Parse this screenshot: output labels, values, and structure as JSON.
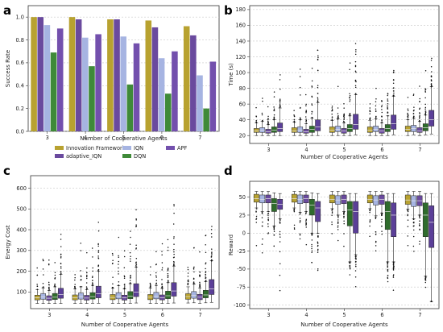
{
  "colors": {
    "Innovation Framework": "#b8a230",
    "adaptive_IQN": "#6a4a9e",
    "IQN": "#a6b4e2",
    "DQN": "#3f8a38",
    "APF": "#7350ad",
    "DQN_box": "#2f6c2c",
    "APF_box": "#5b3f98"
  },
  "chart_data": [
    {
      "panel": "a",
      "type": "bar",
      "xlabel": "Number of Cooperative Agents",
      "ylabel": "Success Rate",
      "ylim": [
        0,
        1.1
      ],
      "yticks": [
        "0.0",
        "0.2",
        "0.4",
        "0.6",
        "0.8",
        "1.0"
      ],
      "grid": true,
      "legend": "below",
      "categories": [
        "3",
        "4",
        "5",
        "6",
        "7"
      ],
      "series": [
        {
          "name": "Innovation Framework",
          "values": [
            1.0,
            1.0,
            0.98,
            0.97,
            0.92
          ]
        },
        {
          "name": "adaptive_IQN",
          "values": [
            1.0,
            0.98,
            0.98,
            0.91,
            0.84
          ]
        },
        {
          "name": "IQN",
          "values": [
            0.93,
            0.82,
            0.83,
            0.64,
            0.49
          ]
        },
        {
          "name": "DQN",
          "values": [
            0.69,
            0.57,
            0.41,
            0.33,
            0.2
          ]
        },
        {
          "name": "APF",
          "values": [
            0.9,
            0.85,
            0.77,
            0.7,
            0.61
          ]
        }
      ]
    },
    {
      "panel": "b",
      "type": "box",
      "xlabel": "Number of Cooperative Agents",
      "ylabel": "Time (s)",
      "ylim": [
        10,
        185
      ],
      "yticks": [
        "20",
        "40",
        "60",
        "80",
        "100",
        "120",
        "140",
        "160",
        "180"
      ],
      "categories": [
        "3",
        "4",
        "5",
        "6",
        "7"
      ],
      "series": [
        {
          "name": "Innovation Framework",
          "boxes": [
            [
              20,
              24,
              26,
              29,
              36
            ],
            [
              20,
              24,
              26,
              30,
              37
            ],
            [
              20,
              24,
              27,
              31,
              39
            ],
            [
              20,
              24,
              27,
              31,
              39
            ],
            [
              20,
              25,
              28,
              32,
              40
            ]
          ]
        },
        {
          "name": "IQN",
          "boxes": [
            [
              20,
              24,
              27,
              30,
              38
            ],
            [
              20,
              24,
              27,
              31,
              40
            ],
            [
              20,
              25,
              28,
              32,
              41
            ],
            [
              20,
              25,
              28,
              32,
              41
            ],
            [
              21,
              25,
              29,
              33,
              42
            ]
          ]
        },
        {
          "name": "adaptive_IQN",
          "boxes": [
            [
              20,
              23,
              25,
              28,
              34
            ],
            [
              20,
              23,
              25,
              28,
              35
            ],
            [
              20,
              23,
              26,
              29,
              36
            ],
            [
              20,
              23,
              26,
              29,
              36
            ],
            [
              20,
              24,
              26,
              30,
              38
            ]
          ]
        },
        {
          "name": "DQN",
          "boxes": [
            [
              20,
              24,
              27,
              31,
              40
            ],
            [
              20,
              24,
              28,
              32,
              42
            ],
            [
              20,
              25,
              29,
              34,
              45
            ],
            [
              20,
              25,
              29,
              34,
              45
            ],
            [
              21,
              26,
              30,
              35,
              46
            ]
          ]
        },
        {
          "name": "APF",
          "boxes": [
            [
              20,
              25,
              29,
              36,
              55
            ],
            [
              20,
              26,
              31,
              40,
              62
            ],
            [
              21,
              28,
              34,
              47,
              72
            ],
            [
              21,
              28,
              35,
              46,
              70
            ],
            [
              22,
              32,
              40,
              52,
              82
            ]
          ]
        }
      ],
      "outlier_max": [
        128,
        177,
        145,
        145,
        140
      ]
    },
    {
      "panel": "c",
      "type": "box",
      "xlabel": "Number of Cooperative Agents",
      "ylabel": "Energy Cost",
      "ylim": [
        20,
        660
      ],
      "yticks": [
        "100",
        "200",
        "300",
        "400",
        "500",
        "600"
      ],
      "categories": [
        "3",
        "4",
        "5",
        "6",
        "7"
      ],
      "series": [
        {
          "name": "Innovation Framework",
          "boxes": [
            [
              45,
              62,
              72,
              85,
              112
            ],
            [
              45,
              62,
              73,
              86,
              115
            ],
            [
              45,
              63,
              74,
              88,
              118
            ],
            [
              45,
              63,
              75,
              88,
              120
            ],
            [
              47,
              65,
              78,
              92,
              125
            ]
          ]
        },
        {
          "name": "IQN",
          "boxes": [
            [
              45,
              65,
              76,
              92,
              120
            ],
            [
              46,
              66,
              78,
              95,
              125
            ],
            [
              46,
              67,
              80,
              97,
              130
            ],
            [
              46,
              67,
              80,
              98,
              132
            ],
            [
              48,
              70,
              83,
              102,
              138
            ]
          ]
        },
        {
          "name": "adaptive_IQN",
          "boxes": [
            [
              45,
              60,
              70,
              82,
              108
            ],
            [
              45,
              61,
              71,
              84,
              112
            ],
            [
              45,
              61,
              72,
              85,
              115
            ],
            [
              45,
              62,
              73,
              86,
              117
            ],
            [
              46,
              63,
              75,
              89,
              120
            ]
          ]
        },
        {
          "name": "DQN",
          "boxes": [
            [
              45,
              64,
              75,
              93,
              125
            ],
            [
              46,
              66,
              78,
              97,
              132
            ],
            [
              46,
              68,
              80,
              102,
              140
            ],
            [
              46,
              68,
              82,
              104,
              145
            ],
            [
              48,
              72,
              86,
              108,
              150
            ]
          ]
        },
        {
          "name": "APF",
          "boxes": [
            [
              45,
              70,
              88,
              118,
              185
            ],
            [
              46,
              72,
              92,
              128,
              200
            ],
            [
              47,
              78,
              100,
              140,
              220
            ],
            [
              47,
              80,
              105,
              145,
              225
            ],
            [
              50,
              88,
              115,
              160,
              250
            ]
          ]
        }
      ],
      "outlier_max": [
        460,
        645,
        645,
        620,
        600
      ]
    },
    {
      "panel": "d",
      "type": "box",
      "xlabel": "Number of Cooperative Agents",
      "ylabel": "Reward",
      "ylim": [
        -105,
        72
      ],
      "yticks": [
        "-100",
        "-75",
        "-50",
        "-25",
        "0",
        "25",
        "50"
      ],
      "categories": [
        "3",
        "4",
        "5",
        "6",
        "7"
      ],
      "series": [
        {
          "name": "Innovation Framework",
          "boxes": [
            [
              35,
              43,
              48,
              54,
              58
            ],
            [
              35,
              43,
              48,
              54,
              58
            ],
            [
              34,
              42,
              47,
              53,
              58
            ],
            [
              34,
              42,
              47,
              53,
              58
            ],
            [
              33,
              40,
              46,
              53,
              58
            ]
          ]
        },
        {
          "name": "IQN",
          "boxes": [
            [
              30,
              42,
              47,
              53,
              58
            ],
            [
              29,
              41,
              47,
              53,
              58
            ],
            [
              25,
              40,
              46,
              52,
              58
            ],
            [
              24,
              39,
              46,
              52,
              58
            ],
            [
              20,
              37,
              45,
              52,
              58
            ]
          ]
        },
        {
          "name": "adaptive_IQN",
          "boxes": [
            [
              30,
              42,
              48,
              53,
              58
            ],
            [
              30,
              42,
              48,
              53,
              58
            ],
            [
              30,
              41,
              47,
              53,
              58
            ],
            [
              28,
              40,
              47,
              53,
              58
            ],
            [
              25,
              38,
              45,
              52,
              58
            ]
          ]
        },
        {
          "name": "DQN",
          "boxes": [
            [
              10,
              30,
              41,
              48,
              56
            ],
            [
              0,
              25,
              39,
              47,
              56
            ],
            [
              -40,
              10,
              32,
              44,
              55
            ],
            [
              -40,
              5,
              30,
              44,
              55
            ],
            [
              -60,
              -5,
              25,
              42,
              55
            ]
          ]
        },
        {
          "name": "APF",
          "boxes": [
            [
              20,
              33,
              40,
              47,
              55
            ],
            [
              0,
              16,
              35,
              44,
              55
            ],
            [
              -30,
              0,
              30,
              44,
              55
            ],
            [
              -40,
              -5,
              25,
              42,
              55
            ],
            [
              -95,
              -20,
              15,
              38,
              55
            ]
          ]
        }
      ],
      "outlier_min": [
        -95,
        -90,
        -95,
        -90,
        -95
      ]
    }
  ]
}
